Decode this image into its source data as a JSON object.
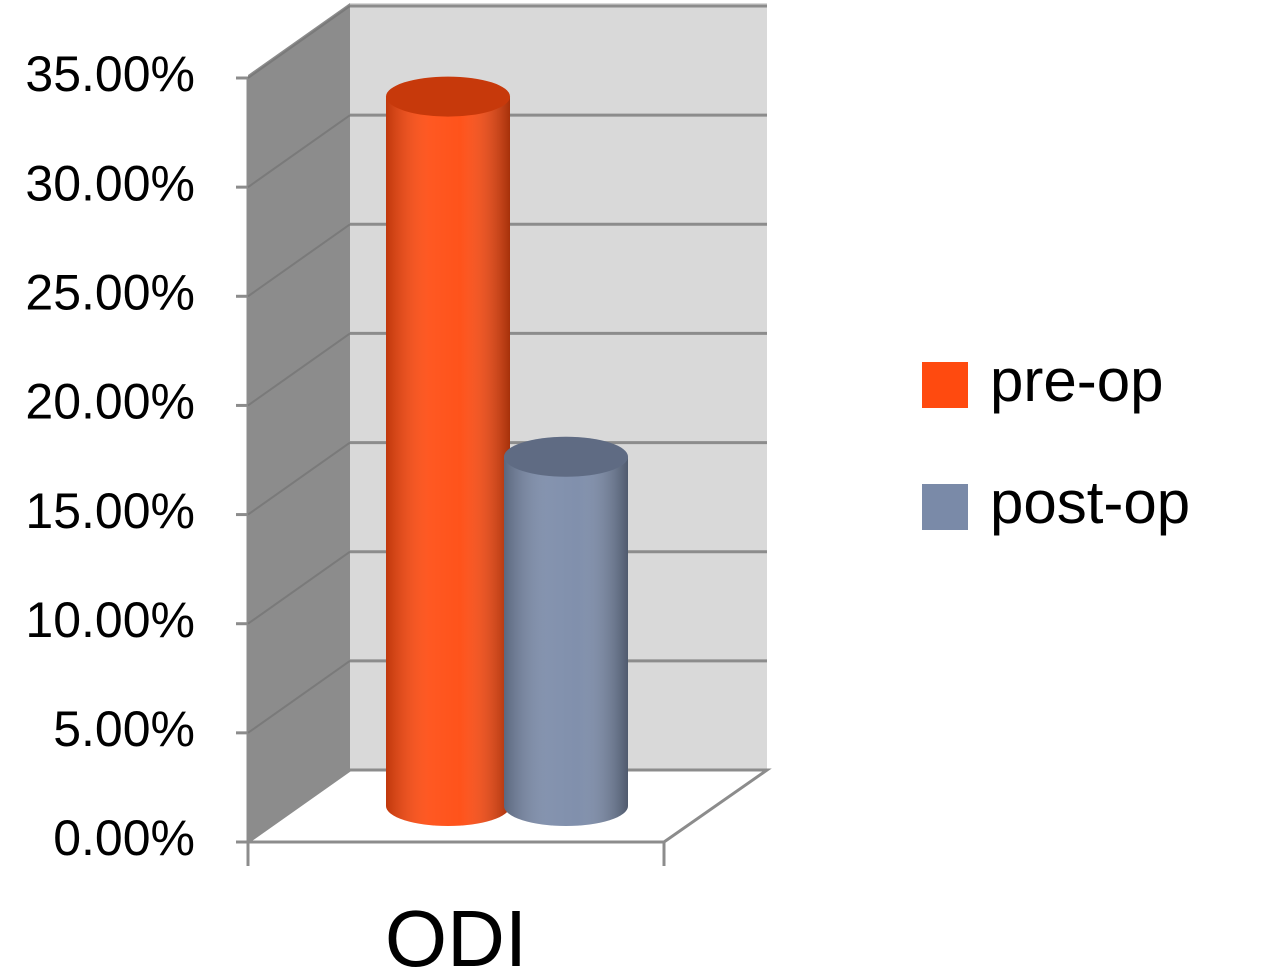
{
  "chart_data": {
    "type": "bar3d",
    "categories": [
      "ODI"
    ],
    "series": [
      {
        "name": "pre-op",
        "color": "#ff4a0f",
        "values": [
          32.5
        ]
      },
      {
        "name": "post-op",
        "color": "#7a8aa8",
        "values": [
          16
        ]
      }
    ],
    "ylim": [
      0,
      35
    ],
    "yticks": [
      {
        "value": 0,
        "label": "0.00%"
      },
      {
        "value": 5,
        "label": "5.00%"
      },
      {
        "value": 10,
        "label": "10.00%"
      },
      {
        "value": 15,
        "label": "15.00%"
      },
      {
        "value": 20,
        "label": "20.00%"
      },
      {
        "value": 25,
        "label": "25.00%"
      },
      {
        "value": 30,
        "label": "30.00%"
      },
      {
        "value": 35,
        "label": "35.00%"
      }
    ],
    "grid": true,
    "legend": "right"
  }
}
